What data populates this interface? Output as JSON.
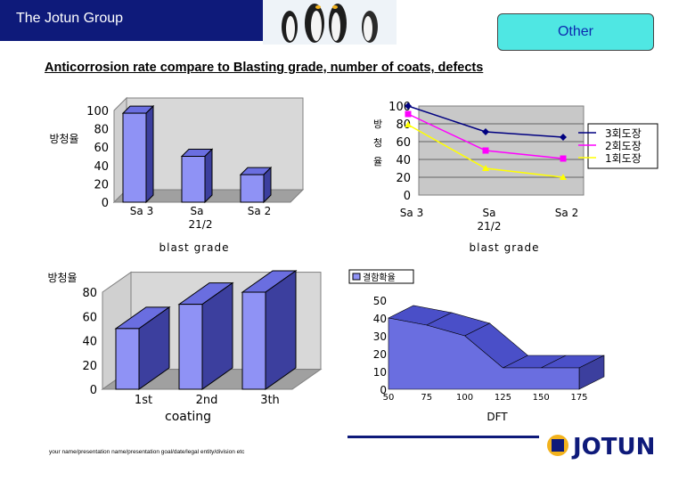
{
  "header": {
    "title": "The Jotun Group",
    "other_button": "Other"
  },
  "heading": "Anticorrosion rate compare to Blasting grade, number of coats, defects",
  "footer": {
    "text": "your name/presentation name/presentation goal/date/legal entity/division etc",
    "logo": "JOTUN"
  },
  "colors": {
    "brand_navy": "#0e1a7a",
    "bar": "#8f92f5",
    "accent": "#4fe7e3"
  },
  "chart_data": [
    {
      "type": "bar",
      "title": "",
      "ylabel": "방청율",
      "xlabel": "blast grade",
      "categories": [
        "Sa 3",
        "Sa 21/2",
        "Sa 2"
      ],
      "values": [
        97,
        50,
        30
      ],
      "ylim": [
        0,
        100
      ],
      "yticks": [
        0,
        20,
        40,
        60,
        80,
        100
      ],
      "grid": false
    },
    {
      "type": "line",
      "title": "",
      "ylabel": "방청율",
      "xlabel": "blast grade",
      "categories": [
        "Sa 3",
        "Sa 21/2",
        "Sa 2"
      ],
      "ylim": [
        0,
        100
      ],
      "yticks": [
        0,
        20,
        40,
        60,
        80,
        100
      ],
      "series": [
        {
          "name": "3회도장",
          "values": [
            100,
            71,
            65
          ],
          "color": "#000080",
          "marker": "diamond"
        },
        {
          "name": "2회도장",
          "values": [
            91,
            50,
            41
          ],
          "color": "#ff00ff",
          "marker": "square"
        },
        {
          "name": "1회도장",
          "values": [
            79,
            30,
            20
          ],
          "color": "#ffff00",
          "marker": "triangle"
        }
      ],
      "legend": "right",
      "grid": true
    },
    {
      "type": "bar",
      "title": "",
      "ylabel": "방청율",
      "xlabel": "coating",
      "categories": [
        "1st",
        "2nd",
        "3th"
      ],
      "values": [
        50,
        70,
        80
      ],
      "ylim": [
        0,
        80
      ],
      "yticks": [
        0,
        20,
        40,
        60,
        80
      ],
      "grid": false
    },
    {
      "type": "area",
      "title": "",
      "xlabel": "DFT",
      "legend_label": "결함확율",
      "x": [
        50,
        75,
        100,
        125,
        150,
        175
      ],
      "values": [
        40,
        36,
        30,
        12,
        12,
        12
      ],
      "ylim": [
        0,
        50
      ],
      "yticks": [
        0,
        10,
        20,
        30,
        40,
        50
      ],
      "legend": "top-left",
      "grid": false
    }
  ]
}
